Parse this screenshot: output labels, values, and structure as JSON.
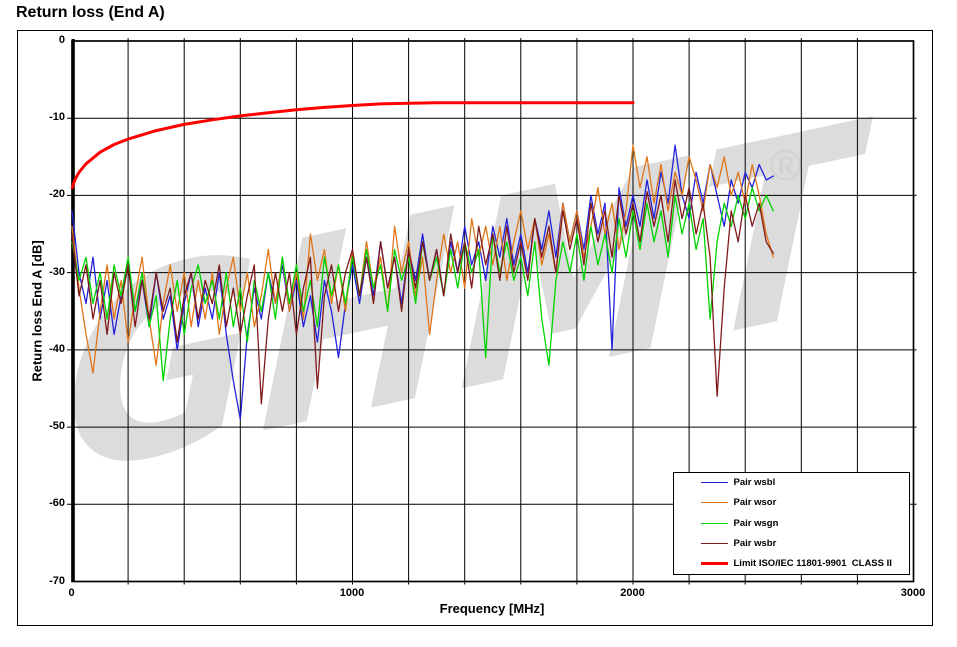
{
  "title": "Return loss (End A)",
  "watermark": {
    "text": "GHMT",
    "registered_mark": "®"
  },
  "axes": {
    "x": {
      "label": "Frequency [MHz]",
      "min": 0,
      "max": 3000,
      "grid_step": 200,
      "tick_values": [
        0,
        1000,
        2000,
        3000
      ],
      "tick_labels": [
        "0",
        "1000",
        "2000",
        "3000"
      ]
    },
    "y": {
      "label": "Return loss End A [dB]",
      "min": -70,
      "max": 0,
      "grid_step": 10,
      "tick_values": [
        0,
        -10,
        -20,
        -30,
        -40,
        -50,
        -60,
        -70
      ],
      "tick_labels": [
        "0",
        "-10",
        "-20",
        "-30",
        "-40",
        "-50",
        "-60",
        "-70"
      ]
    }
  },
  "legend": {
    "position": "bottom-right",
    "entries": [
      {
        "label": "Pair wsbl",
        "color": "#2222dd",
        "thick": false
      },
      {
        "label": "Pair wsor",
        "color": "#e0761a",
        "thick": false
      },
      {
        "label": "Pair wsgn",
        "color": "#00d300",
        "thick": false
      },
      {
        "label": "Pair wsbr",
        "color": "#801a1a",
        "thick": false
      },
      {
        "label": "Limit ISO/IEC 11801-9901  CLASS II",
        "color": "#ff0000",
        "thick": true
      }
    ]
  },
  "chart_data": {
    "type": "line",
    "title": "Return loss (End A)",
    "xlabel": "Frequency [MHz]",
    "ylabel": "Return loss End A [dB]",
    "xlim": [
      0,
      3000
    ],
    "ylim": [
      -70,
      0
    ],
    "grid": true,
    "legend_position": "bottom-right",
    "series": [
      {
        "name": "Pair wsbl",
        "color": "#2222dd",
        "width": 1.3,
        "f_start": 0,
        "f_step": 25,
        "values": [
          -22,
          -30,
          -34,
          -28,
          -36,
          -31,
          -38,
          -33,
          -29,
          -35,
          -31,
          -37,
          -30,
          -36,
          -33,
          -40,
          -34,
          -30,
          -37,
          -32,
          -36,
          -30,
          -38,
          -44,
          -49,
          -38,
          -32,
          -36,
          -30,
          -34,
          -29,
          -35,
          -31,
          -37,
          -33,
          -39,
          -31,
          -35,
          -41,
          -34,
          -29,
          -34,
          -28,
          -33,
          -26,
          -32,
          -28,
          -34,
          -27,
          -31,
          -25,
          -31,
          -27,
          -33,
          -26,
          -30,
          -24,
          -29,
          -26,
          -31,
          -24,
          -28,
          -23,
          -29,
          -25,
          -30,
          -23,
          -27,
          -22,
          -28,
          -21,
          -26,
          -22,
          -27,
          -20,
          -25,
          -21,
          -40,
          -19,
          -24,
          -20,
          -24,
          -18,
          -23,
          -17,
          -21,
          -13.5,
          -20,
          -23,
          -17,
          -21,
          -16,
          -20,
          -24,
          -18,
          -21,
          -17,
          -19,
          -16,
          -18,
          -17.5
        ]
      },
      {
        "name": "Pair wsor",
        "color": "#e0761a",
        "width": 1.3,
        "f_start": 0,
        "f_step": 25,
        "values": [
          -24,
          -32,
          -38,
          -43,
          -35,
          -29,
          -36,
          -31,
          -39,
          -33,
          -28,
          -36,
          -42,
          -34,
          -29,
          -35,
          -30,
          -37,
          -31,
          -36,
          -30,
          -38,
          -32,
          -28,
          -35,
          -30,
          -37,
          -33,
          -27,
          -34,
          -28,
          -35,
          -30,
          -36,
          -25,
          -31,
          -27,
          -34,
          -29,
          -35,
          -27,
          -33,
          -26,
          -32,
          -28,
          -35,
          -24,
          -30,
          -26,
          -33,
          -28,
          -38,
          -31,
          -25,
          -30,
          -26,
          -32,
          -23,
          -28,
          -24,
          -29,
          -24,
          -31,
          -26,
          -22,
          -27,
          -23,
          -29,
          -25,
          -30,
          -21,
          -26,
          -22,
          -28,
          -24,
          -19,
          -25,
          -21,
          -27,
          -22,
          -13.5,
          -19,
          -15,
          -21,
          -16,
          -22,
          -17,
          -20,
          -15,
          -18,
          -22,
          -16,
          -19,
          -15,
          -20,
          -17,
          -21,
          -16,
          -20,
          -25,
          -28
        ]
      },
      {
        "name": "Pair wsgn",
        "color": "#00d300",
        "width": 1.3,
        "f_start": 0,
        "f_step": 25,
        "values": [
          -26,
          -31,
          -28,
          -34,
          -30,
          -36,
          -29,
          -33,
          -28,
          -35,
          -30,
          -37,
          -33,
          -44,
          -36,
          -31,
          -38,
          -32,
          -29,
          -34,
          -31,
          -36,
          -30,
          -37,
          -32,
          -39,
          -31,
          -35,
          -30,
          -36,
          -28,
          -34,
          -29,
          -35,
          -31,
          -37,
          -28,
          -33,
          -29,
          -34,
          -28,
          -33,
          -27,
          -32,
          -29,
          -35,
          -27,
          -31,
          -28,
          -34,
          -26,
          -31,
          -28,
          -33,
          -27,
          -32,
          -26,
          -30,
          -27,
          -41,
          -25,
          -30,
          -26,
          -31,
          -28,
          -33,
          -26,
          -36,
          -42,
          -31,
          -26,
          -30,
          -25,
          -31,
          -24,
          -29,
          -25,
          -30,
          -23,
          -28,
          -22,
          -27,
          -21,
          -26,
          -22,
          -28,
          -20,
          -25,
          -21,
          -27,
          -23,
          -36,
          -26,
          -21,
          -24,
          -20,
          -23,
          -19,
          -22,
          -20,
          -22
        ]
      },
      {
        "name": "Pair wsbr",
        "color": "#801a1a",
        "width": 1.3,
        "f_start": 0,
        "f_step": 25,
        "values": [
          -25,
          -33,
          -29,
          -36,
          -31,
          -38,
          -30,
          -34,
          -29,
          -37,
          -31,
          -36,
          -30,
          -35,
          -32,
          -39,
          -33,
          -30,
          -36,
          -31,
          -34,
          -29,
          -37,
          -32,
          -38,
          -33,
          -29,
          -47,
          -36,
          -30,
          -35,
          -30,
          -38,
          -32,
          -28,
          -45,
          -33,
          -29,
          -35,
          -30,
          -27,
          -33,
          -28,
          -34,
          -26,
          -32,
          -28,
          -35,
          -27,
          -32,
          -26,
          -31,
          -27,
          -33,
          -25,
          -30,
          -26,
          -32,
          -24,
          -29,
          -25,
          -31,
          -24,
          -30,
          -26,
          -31,
          -23,
          -28,
          -24,
          -30,
          -22,
          -27,
          -23,
          -29,
          -21,
          -26,
          -22,
          -28,
          -20,
          -25,
          -21,
          -26,
          -19.5,
          -24,
          -20,
          -26,
          -18,
          -23,
          -19,
          -25,
          -21,
          -28,
          -46,
          -32,
          -22,
          -26,
          -20,
          -24,
          -21,
          -26,
          -27.5
        ]
      },
      {
        "name": "Limit ISO/IEC 11801-9901  CLASS II",
        "color": "#ff0000",
        "width": 3,
        "points": [
          [
            1,
            -19
          ],
          [
            10,
            -18
          ],
          [
            25,
            -17
          ],
          [
            50,
            -15.9
          ],
          [
            100,
            -14.4
          ],
          [
            150,
            -13.4
          ],
          [
            200,
            -12.7
          ],
          [
            300,
            -11.6
          ],
          [
            400,
            -10.8
          ],
          [
            500,
            -10.2
          ],
          [
            600,
            -9.7
          ],
          [
            700,
            -9.3
          ],
          [
            800,
            -8.9
          ],
          [
            900,
            -8.6
          ],
          [
            1000,
            -8.35
          ],
          [
            1100,
            -8.15
          ],
          [
            1200,
            -8.05
          ],
          [
            1300,
            -8
          ],
          [
            2000,
            -8
          ]
        ]
      }
    ]
  }
}
